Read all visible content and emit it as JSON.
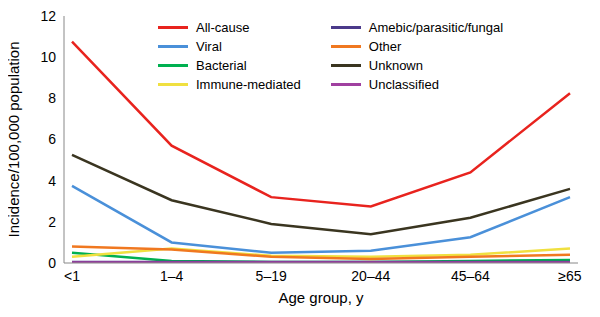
{
  "chart_data": {
    "type": "line",
    "x_label": "Age group, y",
    "y_label": "Incidence/100,000 population",
    "categories": [
      "<1",
      "1–4",
      "5–19",
      "20–44",
      "45–64",
      "≥65"
    ],
    "series": [
      {
        "name": "All-cause",
        "color": "#e8231e",
        "values": [
          10.75,
          5.7,
          3.2,
          2.75,
          4.4,
          8.25
        ]
      },
      {
        "name": "Viral",
        "color": "#4a90d9",
        "values": [
          3.75,
          1.0,
          0.5,
          0.6,
          1.25,
          3.2
        ]
      },
      {
        "name": "Bacterial",
        "color": "#00b050",
        "values": [
          0.5,
          0.1,
          0.05,
          0.05,
          0.1,
          0.15
        ]
      },
      {
        "name": "Immune-mediated",
        "color": "#f0e040",
        "values": [
          0.3,
          0.7,
          0.35,
          0.3,
          0.4,
          0.7
        ]
      },
      {
        "name": "Amebic/parasitic/fungal",
        "color": "#4b3a8a",
        "values": [
          0.05,
          0.05,
          0.05,
          0.05,
          0.05,
          0.05
        ]
      },
      {
        "name": "Other",
        "color": "#f07820",
        "values": [
          0.8,
          0.65,
          0.3,
          0.2,
          0.3,
          0.4
        ]
      },
      {
        "name": "Unknown",
        "color": "#3a3520",
        "values": [
          5.25,
          3.05,
          1.9,
          1.4,
          2.2,
          3.6
        ]
      },
      {
        "name": "Unclassified",
        "color": "#a040a0",
        "values": [
          0.02,
          0.02,
          0.02,
          0.02,
          0.02,
          0.02
        ]
      }
    ],
    "ylim": [
      0,
      12
    ],
    "yticks": [
      0,
      2,
      4,
      6,
      8,
      10,
      12
    ],
    "grid": false,
    "legend": "top"
  }
}
